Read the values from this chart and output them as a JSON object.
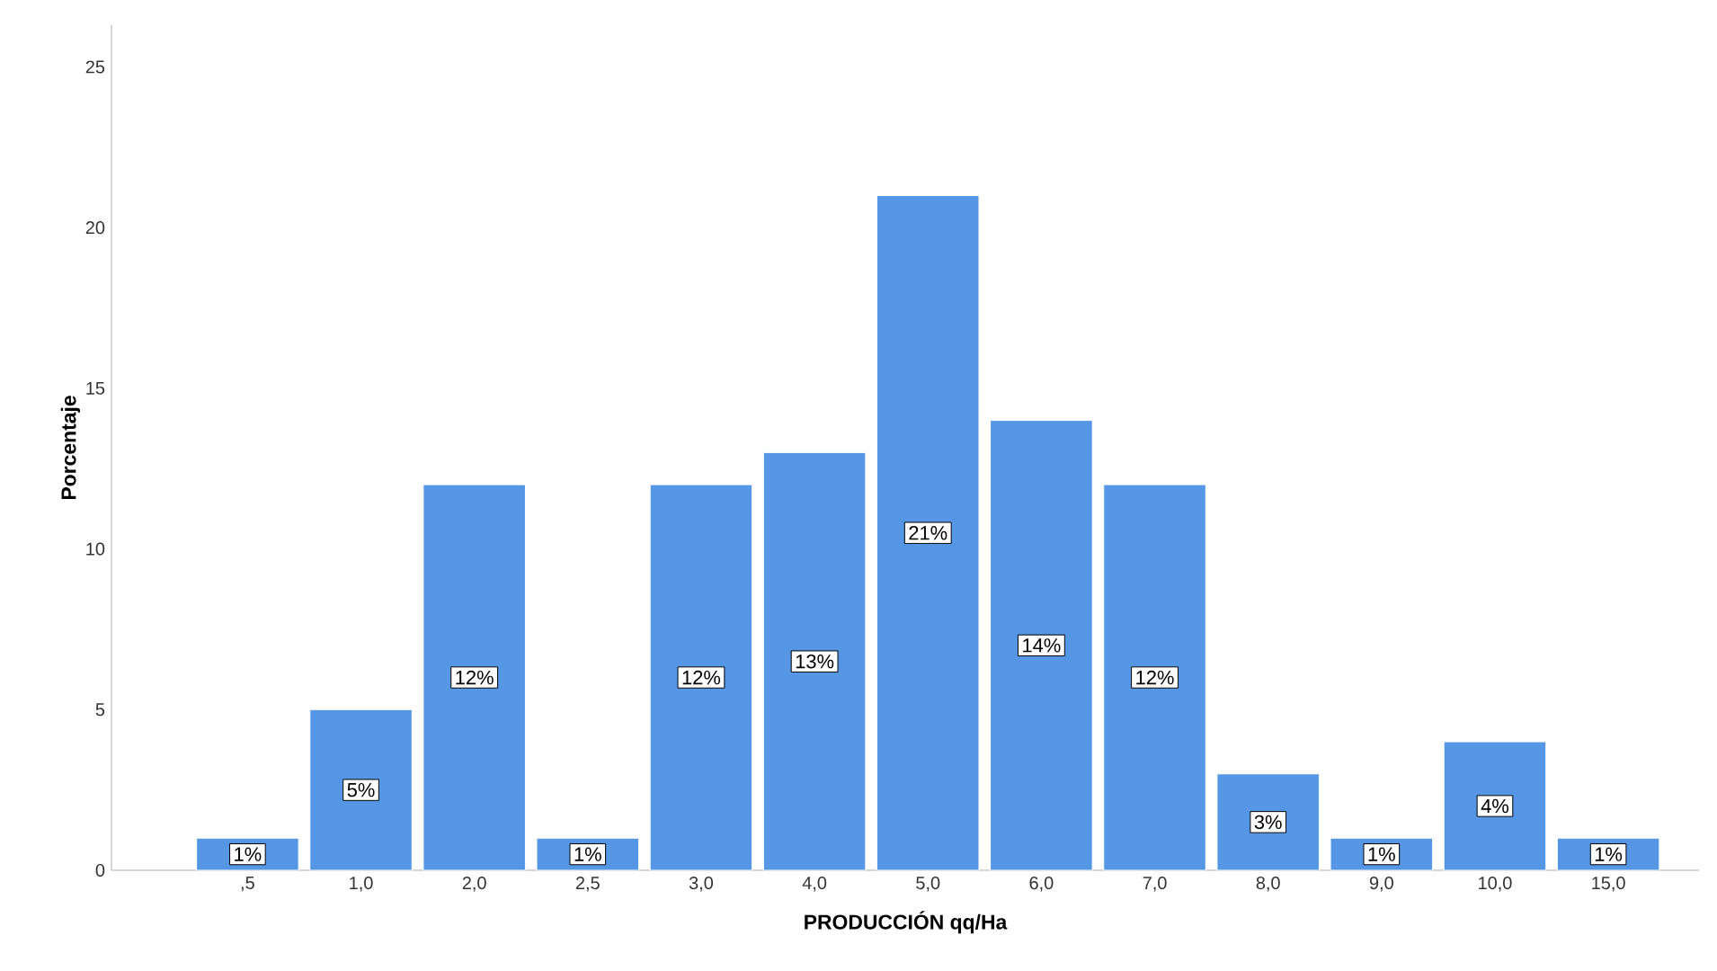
{
  "chart_data": {
    "type": "bar",
    "xlabel": "PRODUCCIÓN qq/Ha",
    "ylabel": "Porcentaje",
    "categories": [
      ",5",
      "1,0",
      "2,0",
      "2,5",
      "3,0",
      "4,0",
      "5,0",
      "6,0",
      "7,0",
      "8,0",
      "9,0",
      "10,0",
      "15,0"
    ],
    "values": [
      1,
      5,
      12,
      1,
      12,
      13,
      21,
      14,
      12,
      3,
      1,
      4,
      1
    ],
    "value_labels": [
      "1%",
      "5%",
      "12%",
      "1%",
      "12%",
      "13%",
      "21%",
      "14%",
      "12%",
      "3%",
      "1%",
      "4%",
      "1%"
    ],
    "color": "#5596e5",
    "ylim": [
      0,
      26.3
    ],
    "yticks": [
      0,
      5,
      10,
      15,
      20,
      25
    ]
  }
}
